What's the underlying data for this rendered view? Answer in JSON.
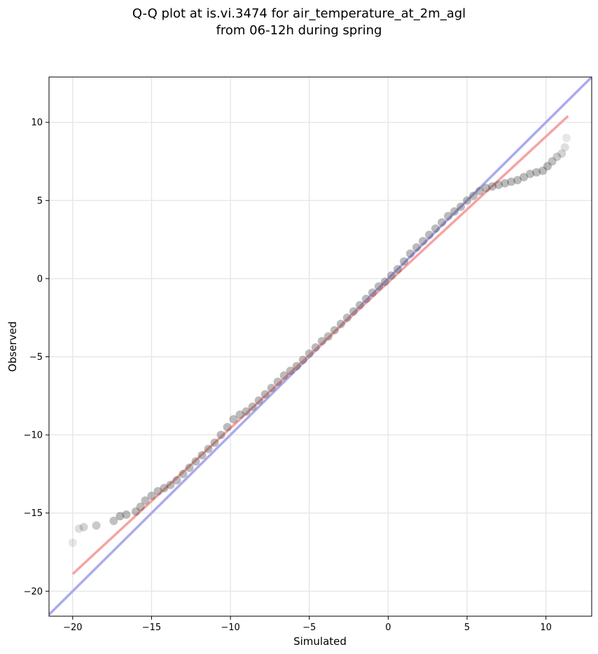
{
  "chart_data": {
    "type": "scatter",
    "title_line1": "Q-Q plot at is.vi.3474 for air_temperature_at_2m_agl",
    "title_line2": "from 06-12h during spring",
    "xlabel": "Simulated",
    "ylabel": "Observed",
    "xlim": [
      -21.5,
      12.9
    ],
    "ylim": [
      -21.6,
      12.9
    ],
    "xticks": [
      -20,
      -15,
      -10,
      -5,
      0,
      5,
      10
    ],
    "yticks": [
      -20,
      -15,
      -10,
      -5,
      0,
      5,
      10
    ],
    "xtick_labels": [
      "−20",
      "−15",
      "−10",
      "−5",
      "0",
      "5",
      "10"
    ],
    "ytick_labels": [
      "−20",
      "−15",
      "−10",
      "−5",
      "0",
      "5",
      "10"
    ],
    "grid": true,
    "reference_line": {
      "color": "#aaaaee",
      "from": [
        -21.5,
        -21.5
      ],
      "to": [
        12.9,
        12.9
      ]
    },
    "fit_line": {
      "color": "#f5a3a3",
      "from": [
        -20.0,
        -18.9
      ],
      "to": [
        11.4,
        10.4
      ]
    },
    "points": [
      [
        -20.0,
        -16.9
      ],
      [
        -19.6,
        -16.0
      ],
      [
        -19.3,
        -15.9
      ],
      [
        -18.5,
        -15.8
      ],
      [
        -17.4,
        -15.5
      ],
      [
        -17.0,
        -15.2
      ],
      [
        -16.6,
        -15.1
      ],
      [
        -16.0,
        -14.9
      ],
      [
        -15.7,
        -14.6
      ],
      [
        -15.4,
        -14.2
      ],
      [
        -15.0,
        -13.9
      ],
      [
        -14.6,
        -13.6
      ],
      [
        -14.2,
        -13.4
      ],
      [
        -13.8,
        -13.2
      ],
      [
        -13.4,
        -12.9
      ],
      [
        -13.0,
        -12.5
      ],
      [
        -12.6,
        -12.1
      ],
      [
        -12.2,
        -11.7
      ],
      [
        -11.8,
        -11.3
      ],
      [
        -11.4,
        -10.9
      ],
      [
        -11.0,
        -10.5
      ],
      [
        -10.6,
        -10.0
      ],
      [
        -10.2,
        -9.5
      ],
      [
        -9.8,
        -9.0
      ],
      [
        -9.4,
        -8.7
      ],
      [
        -9.0,
        -8.5
      ],
      [
        -8.6,
        -8.2
      ],
      [
        -8.2,
        -7.8
      ],
      [
        -7.8,
        -7.4
      ],
      [
        -7.4,
        -7.0
      ],
      [
        -7.0,
        -6.6
      ],
      [
        -6.6,
        -6.2
      ],
      [
        -6.2,
        -5.9
      ],
      [
        -5.8,
        -5.6
      ],
      [
        -5.4,
        -5.2
      ],
      [
        -5.0,
        -4.8
      ],
      [
        -4.6,
        -4.4
      ],
      [
        -4.2,
        -4.0
      ],
      [
        -3.8,
        -3.7
      ],
      [
        -3.4,
        -3.3
      ],
      [
        -3.0,
        -2.9
      ],
      [
        -2.6,
        -2.5
      ],
      [
        -2.2,
        -2.1
      ],
      [
        -1.8,
        -1.7
      ],
      [
        -1.4,
        -1.3
      ],
      [
        -1.0,
        -0.9
      ],
      [
        -0.6,
        -0.5
      ],
      [
        -0.2,
        -0.2
      ],
      [
        0.2,
        0.2
      ],
      [
        0.6,
        0.6
      ],
      [
        1.0,
        1.1
      ],
      [
        1.4,
        1.6
      ],
      [
        1.8,
        2.0
      ],
      [
        2.2,
        2.4
      ],
      [
        2.6,
        2.8
      ],
      [
        3.0,
        3.2
      ],
      [
        3.4,
        3.6
      ],
      [
        3.8,
        4.0
      ],
      [
        4.2,
        4.3
      ],
      [
        4.6,
        4.6
      ],
      [
        5.0,
        5.0
      ],
      [
        5.4,
        5.3
      ],
      [
        5.8,
        5.6
      ],
      [
        6.2,
        5.8
      ],
      [
        6.6,
        5.9
      ],
      [
        7.0,
        6.0
      ],
      [
        7.4,
        6.1
      ],
      [
        7.8,
        6.2
      ],
      [
        8.2,
        6.3
      ],
      [
        8.6,
        6.5
      ],
      [
        9.0,
        6.7
      ],
      [
        9.4,
        6.8
      ],
      [
        9.8,
        6.9
      ],
      [
        10.1,
        7.2
      ],
      [
        10.4,
        7.5
      ],
      [
        10.7,
        7.8
      ],
      [
        11.0,
        8.0
      ],
      [
        11.2,
        8.4
      ],
      [
        11.3,
        9.0
      ]
    ]
  }
}
